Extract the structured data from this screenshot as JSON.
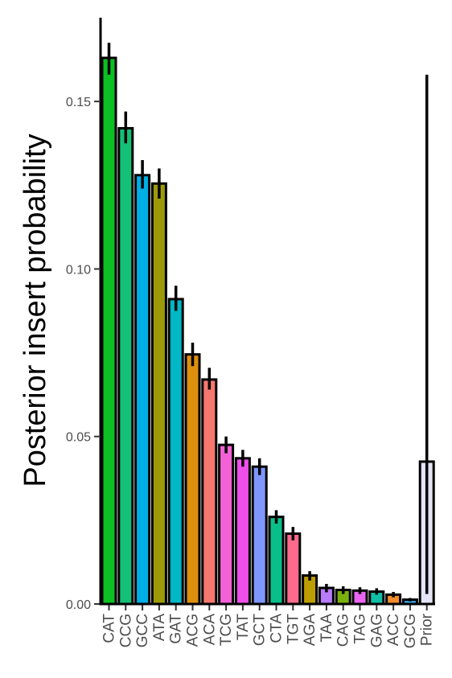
{
  "chart_data": {
    "type": "bar",
    "title": "",
    "xlabel": "",
    "ylabel": "Posterior insert probability",
    "ylim": [
      0,
      0.175
    ],
    "yticks": [
      0.0,
      0.05,
      0.1,
      0.15
    ],
    "ytick_labels": [
      "0.00",
      "0.05",
      "0.10",
      "0.15"
    ],
    "grid": false,
    "legend": "none",
    "categories": [
      "CAT",
      "CCG",
      "GCC",
      "ATA",
      "GAT",
      "ACG",
      "ACA",
      "TCG",
      "TAT",
      "GCT",
      "CTA",
      "TGT",
      "AGA",
      "TAA",
      "CAG",
      "TAG",
      "GAG",
      "ACC",
      "GCG",
      "Prior"
    ],
    "values": [
      0.163,
      0.142,
      0.128,
      0.1255,
      0.091,
      0.0745,
      0.067,
      0.0475,
      0.0435,
      0.041,
      0.026,
      0.021,
      0.0085,
      0.0048,
      0.0042,
      0.004,
      0.0037,
      0.0028,
      0.0013,
      0.0425
    ],
    "error_low": [
      0.158,
      0.1375,
      0.124,
      0.121,
      0.0875,
      0.071,
      0.064,
      0.045,
      0.041,
      0.0385,
      0.024,
      0.019,
      0.007,
      0.0035,
      0.003,
      0.003,
      0.0028,
      0.002,
      0.0008,
      0.003
    ],
    "error_high": [
      0.1675,
      0.147,
      0.1325,
      0.13,
      0.095,
      0.078,
      0.0705,
      0.05,
      0.046,
      0.0435,
      0.028,
      0.023,
      0.0098,
      0.006,
      0.0053,
      0.005,
      0.0047,
      0.0036,
      0.0018,
      0.158
    ],
    "colors": [
      "#0cbf22",
      "#14bf76",
      "#00aee6",
      "#9c9a08",
      "#00b7c6",
      "#dd900e",
      "#f7786e",
      "#f461d6",
      "#ee4eea",
      "#7f96ff",
      "#09bf89",
      "#fd6a8b",
      "#bc9e02",
      "#b77bfc",
      "#7bb10c",
      "#ea65f2",
      "#10bfa6",
      "#f38c2c",
      "#3ba3e0",
      "#e4e4f7"
    ]
  }
}
